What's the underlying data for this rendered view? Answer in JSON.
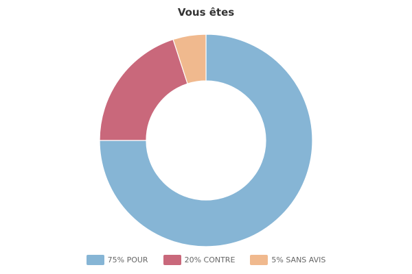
{
  "chart_data": {
    "type": "pie",
    "title": "Vous êtes",
    "donut": true,
    "legend_position": "bottom",
    "categories": [
      "POUR",
      "CONTRE",
      "SANS AVIS"
    ],
    "values": [
      75,
      20,
      5
    ],
    "legend_labels": [
      "75% POUR",
      "20% CONTRE",
      "5% SANS AVIS"
    ],
    "colors": [
      "#86b5d5",
      "#c9687b",
      "#f0b98e"
    ]
  }
}
